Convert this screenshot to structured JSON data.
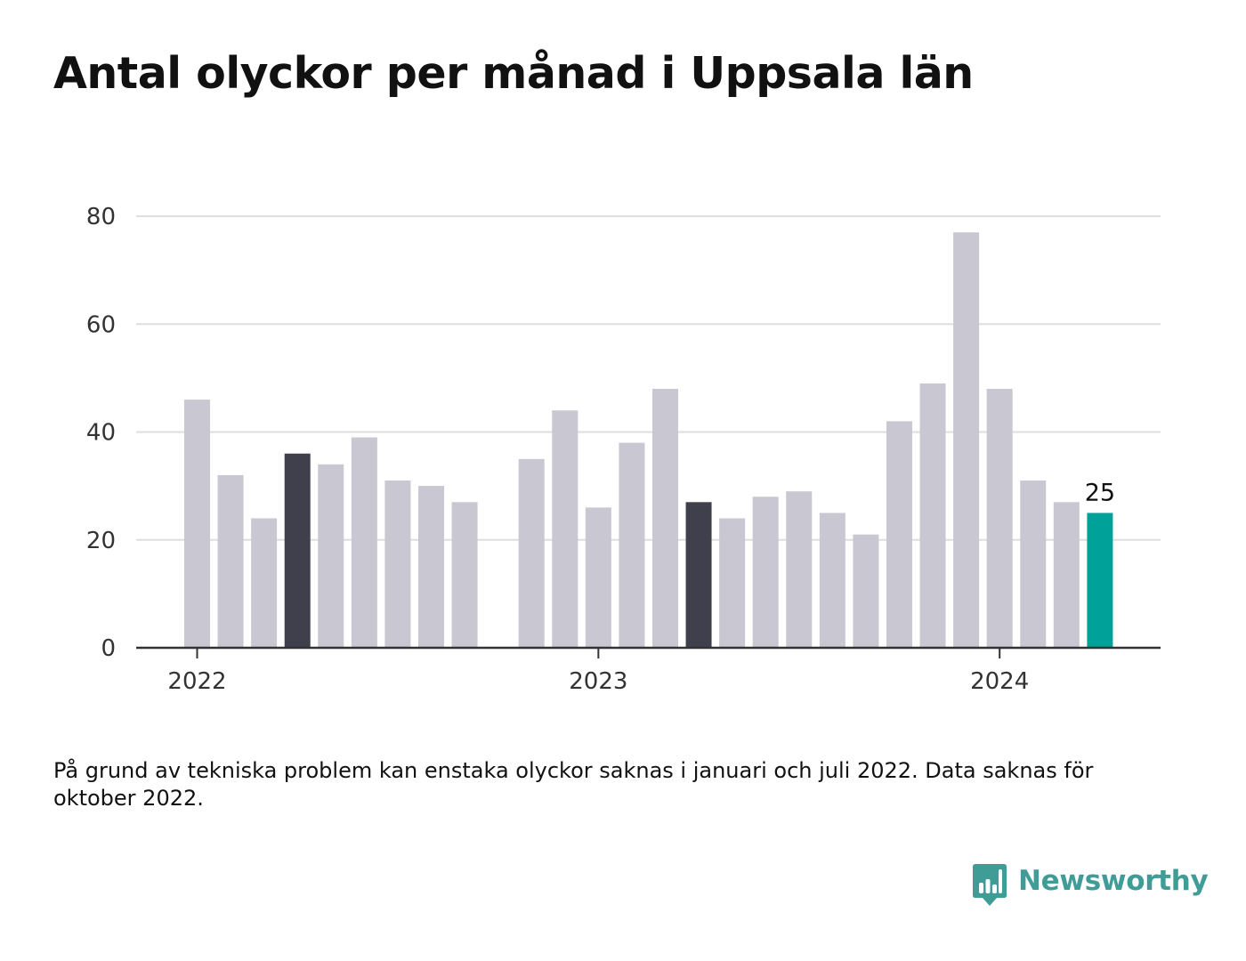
{
  "title": "Antal olyckor per månad i Uppsala län",
  "note": "På grund av tekniska problem kan enstaka olyckor saknas i januari och juli 2022. Data saknas för oktober 2022.",
  "brand": {
    "name": "Newsworthy",
    "icon": "bar-chart-speech-bubble-icon"
  },
  "colors": {
    "bar_default": "#c8c7d2",
    "bar_dark": "#403f4c",
    "bar_highlight": "#00a199",
    "grid": "#dedede",
    "axis": "#333333",
    "brand": "#3f9c96"
  },
  "chart_data": {
    "type": "bar",
    "title": "Antal olyckor per månad i Uppsala län",
    "xlabel": "",
    "ylabel": "",
    "ylim": [
      0,
      80
    ],
    "yticks": [
      0,
      20,
      40,
      60,
      80
    ],
    "xticks": [
      {
        "label": "2022",
        "value": "2022-01"
      },
      {
        "label": "2023",
        "value": "2023-01"
      },
      {
        "label": "2024",
        "value": "2024-01"
      }
    ],
    "grid": true,
    "x": [
      "2022-01",
      "2022-02",
      "2022-03",
      "2022-04",
      "2022-05",
      "2022-06",
      "2022-07",
      "2022-08",
      "2022-09",
      "2022-10",
      "2022-11",
      "2022-12",
      "2023-01",
      "2023-02",
      "2023-03",
      "2023-04",
      "2023-05",
      "2023-06",
      "2023-07",
      "2023-08",
      "2023-09",
      "2023-10",
      "2023-11",
      "2023-12",
      "2024-01",
      "2024-02",
      "2024-03",
      "2024-04"
    ],
    "values": [
      46,
      32,
      24,
      36,
      34,
      39,
      31,
      30,
      27,
      null,
      35,
      44,
      26,
      38,
      48,
      27,
      24,
      28,
      29,
      25,
      21,
      42,
      49,
      77,
      48,
      31,
      27,
      25
    ],
    "dark": [
      "2022-04",
      "2023-04"
    ],
    "highlight": "2024-04",
    "data_labels": [
      {
        "x": "2024-04",
        "text": "25"
      }
    ]
  }
}
